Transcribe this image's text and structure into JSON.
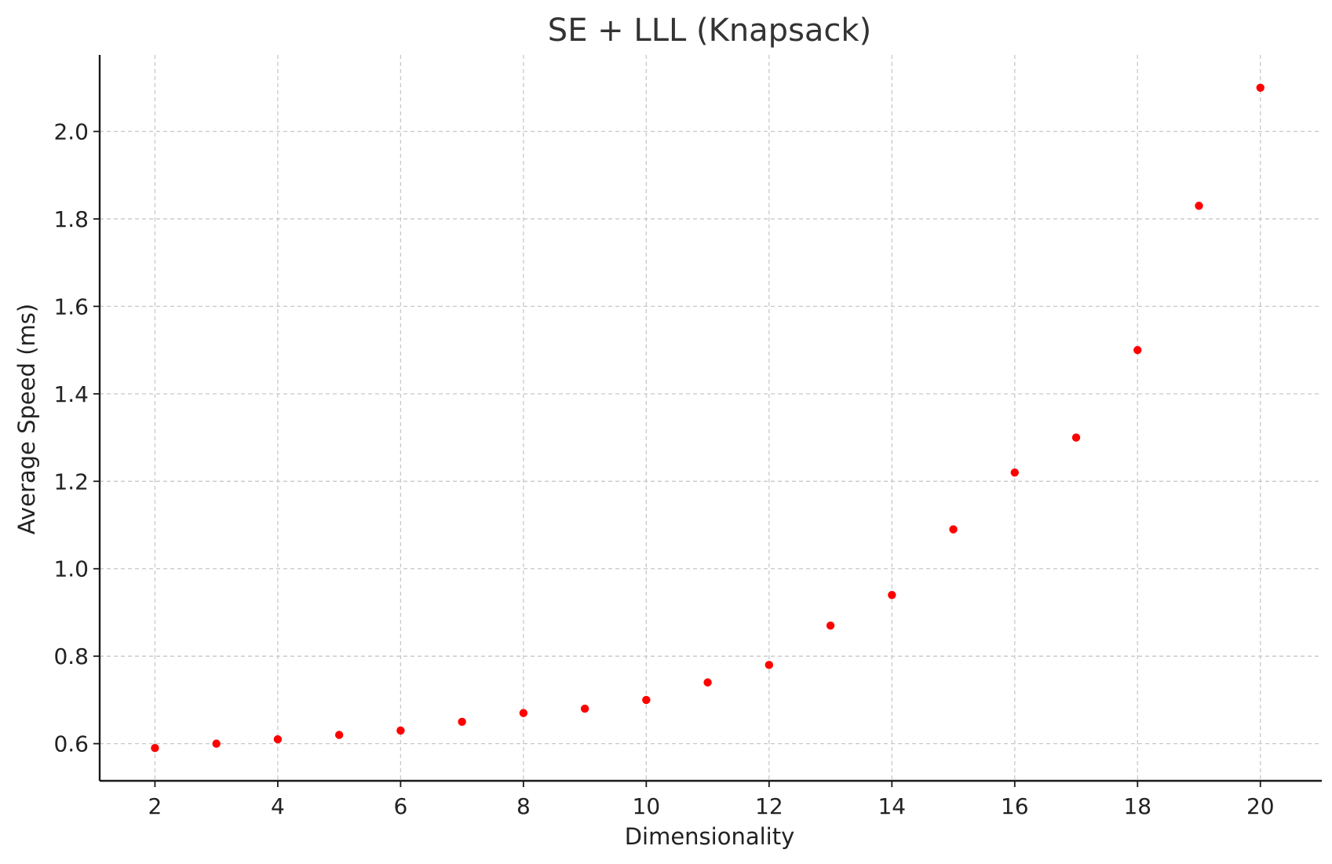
{
  "chart_data": {
    "type": "scatter",
    "title": "SE + LLL (Knapsack)",
    "xlabel": "Dimensionality",
    "ylabel": "Average Speed (ms)",
    "x": [
      2,
      3,
      4,
      5,
      6,
      7,
      8,
      9,
      10,
      11,
      12,
      13,
      14,
      15,
      16,
      17,
      18,
      19,
      20
    ],
    "y": [
      0.59,
      0.6,
      0.61,
      0.62,
      0.63,
      0.65,
      0.67,
      0.68,
      0.7,
      0.74,
      0.78,
      0.87,
      0.94,
      1.09,
      1.22,
      1.3,
      1.5,
      1.83,
      2.1
    ],
    "xlim": [
      1.1,
      21.0
    ],
    "ylim": [
      0.515,
      2.175
    ],
    "xticks": [
      2,
      4,
      6,
      8,
      10,
      12,
      14,
      16,
      18,
      20
    ],
    "xtick_labels": [
      "2",
      "4",
      "6",
      "8",
      "10",
      "12",
      "14",
      "16",
      "18",
      "20"
    ],
    "yticks": [
      0.6,
      0.8,
      1.0,
      1.2,
      1.4,
      1.6,
      1.8,
      2.0
    ],
    "ytick_labels": [
      "0.6",
      "0.8",
      "1.0",
      "1.2",
      "1.4",
      "1.6",
      "1.8",
      "2.0"
    ],
    "grid": true,
    "legend": "none",
    "marker_color": "#ff0000"
  }
}
